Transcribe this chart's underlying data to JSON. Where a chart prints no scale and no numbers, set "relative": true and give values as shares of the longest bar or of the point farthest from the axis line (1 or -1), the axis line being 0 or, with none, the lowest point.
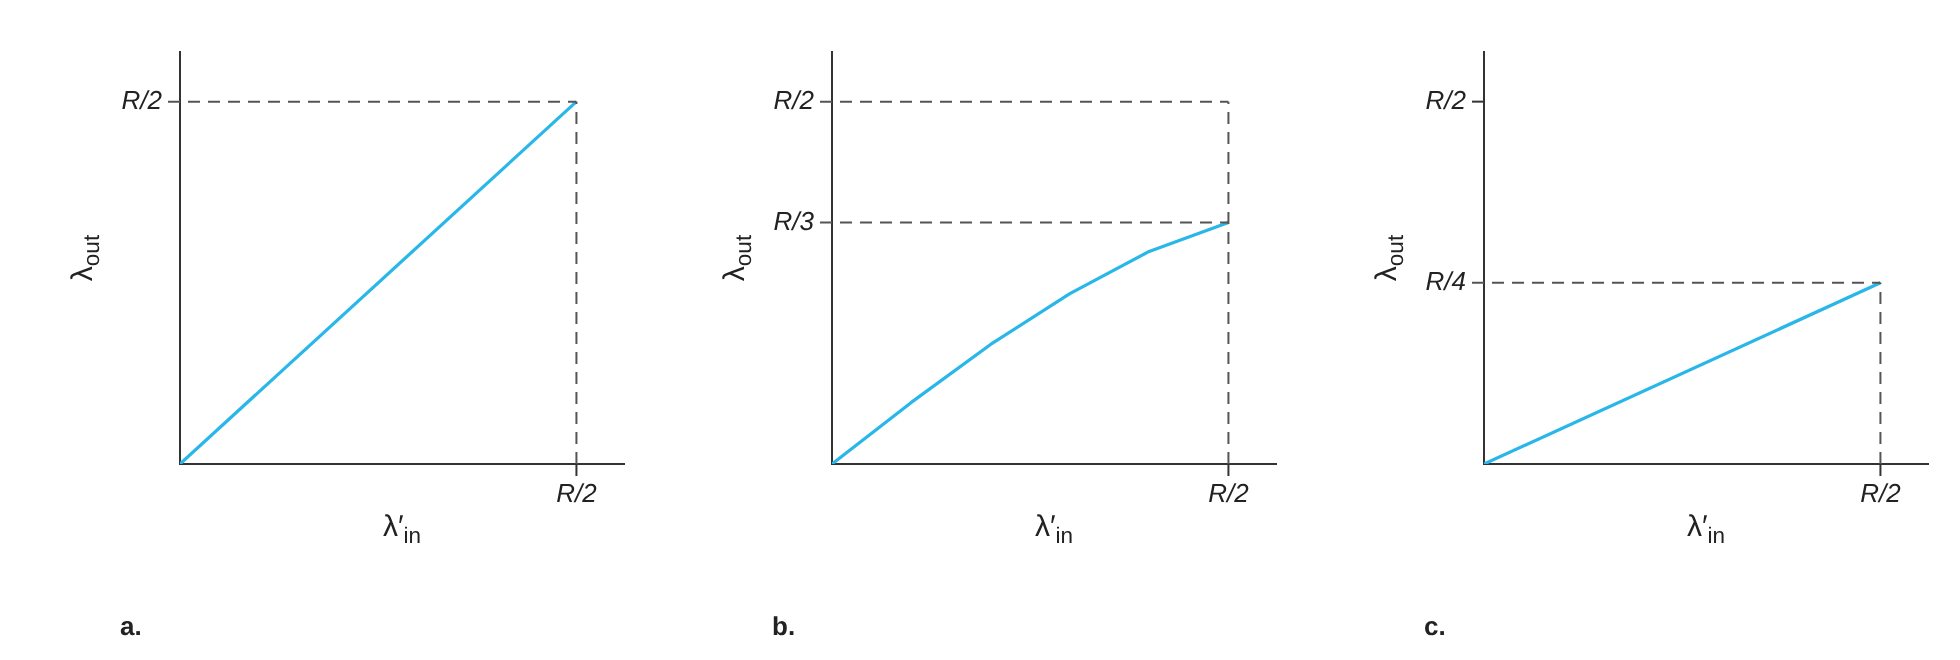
{
  "chart_data": [
    {
      "type": "line",
      "relative": true,
      "title": "a.",
      "xlabel": "λ′$_{in}$",
      "ylabel": "λ$_{out}$",
      "annotations": [
        "R/2"
      ],
      "categories": [
        null,
        null
      ],
      "series": [
        {
          "color": "#29b6e8",
          "values": [
            0,
            1
          ]
        }
      ],
      "ref_lines": [
        {
          "axis": "y",
          "value": 1,
          "label": "R/2",
          "color": "#555555",
          "line_style": "dashed"
        }
      ]
    },
    {
      "type": "line",
      "relative": true,
      "title": "b.",
      "xlabel": "λ′$_{in}$",
      "ylabel": "λ$_{out}$",
      "annotations": [
        "R/2"
      ],
      "categories": [
        null,
        null,
        null,
        null,
        null,
        null
      ],
      "series": [
        {
          "color": "#29b6e8",
          "values": [
            0,
            0.255,
            0.495,
            0.705,
            0.88,
            1
          ]
        }
      ],
      "ref_lines": [
        {
          "axis": "y",
          "value": 1.5,
          "label": "R/2",
          "color": "#555555",
          "line_style": "dashed"
        },
        {
          "axis": "y",
          "value": 1,
          "label": "R/3",
          "color": "#555555",
          "line_style": "dashed"
        }
      ]
    },
    {
      "type": "line",
      "relative": true,
      "title": "c.",
      "xlabel": "λ′$_{in}$",
      "ylabel": "λ$_{out}$",
      "annotations": [
        "R/2"
      ],
      "categories": [
        null,
        null
      ],
      "series": [
        {
          "color": "#29b6e8",
          "values": [
            0,
            1
          ]
        }
      ],
      "ref_lines": [
        {
          "axis": "y",
          "value": 2,
          "label": "R/2",
          "color": "#333333",
          "line_style": "solid"
        },
        {
          "axis": "y",
          "value": 1,
          "label": "R/4",
          "color": "#555555",
          "line_style": "dashed"
        }
      ]
    }
  ]
}
